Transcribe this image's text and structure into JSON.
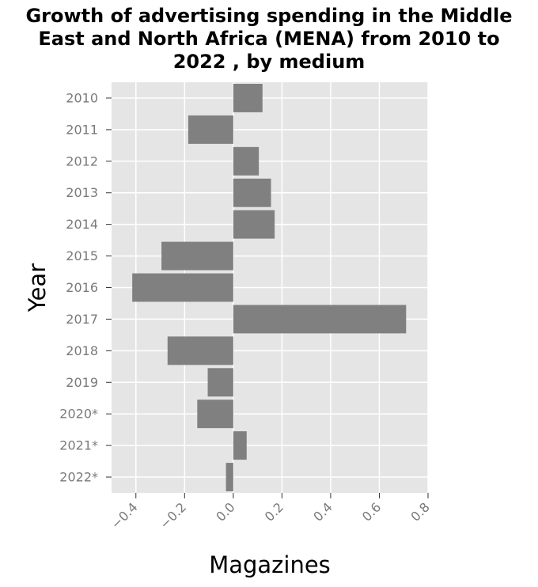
{
  "chart_data": {
    "type": "bar",
    "orientation": "horizontal",
    "title_lines": [
      "Growth of advertising spending in the Middle",
      "East and North Africa (MENA) from 2010 to",
      "2022 , by medium"
    ],
    "xlabel": "Magazines",
    "ylabel": "Year",
    "categories": [
      "2010",
      "2011",
      "2012",
      "2013",
      "2014",
      "2015",
      "2016",
      "2017",
      "2018",
      "2019",
      "2020*",
      "2021*",
      "2022*"
    ],
    "values": [
      0.12,
      -0.185,
      0.105,
      0.155,
      0.17,
      -0.295,
      -0.415,
      0.71,
      -0.27,
      -0.105,
      -0.148,
      0.055,
      -0.03
    ],
    "xlim": [
      -0.5,
      0.8
    ],
    "xticks": [
      -0.4,
      -0.2,
      0.0,
      0.2,
      0.4,
      0.6,
      0.8
    ],
    "xtick_labels": [
      "−0.4",
      "−0.2",
      "0.0",
      "0.2",
      "0.4",
      "0.6",
      "0.8"
    ],
    "grid": true,
    "colors": {
      "bar": "#808080",
      "plot_background": "#e5e5e5",
      "grid": "#ffffff",
      "tick_text": "#7a7a7a"
    }
  }
}
